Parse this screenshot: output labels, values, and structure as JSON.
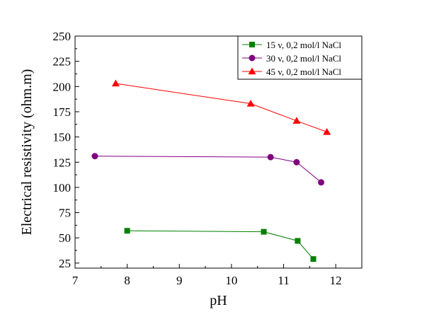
{
  "chart_data": {
    "type": "line",
    "title": "",
    "xlabel": "pH",
    "ylabel": "Electrical resistivity (ohm.m)",
    "xlim": [
      7,
      12.5
    ],
    "ylim": [
      20,
      250
    ],
    "xticks": [
      7,
      8,
      9,
      10,
      11,
      12
    ],
    "yticks": [
      25,
      50,
      75,
      100,
      125,
      150,
      175,
      200,
      225,
      250
    ],
    "x_tick_labels": [
      "7",
      "8",
      "9",
      "10",
      "11",
      "12"
    ],
    "y_tick_labels": [
      "25",
      "50",
      "75",
      "100",
      "125",
      "150",
      "175",
      "200",
      "225",
      "250"
    ],
    "grid": false,
    "legend_position": "top-right",
    "series": [
      {
        "name": "15 v, 0,2 mol/l NaCl",
        "color": "#008000",
        "marker": "square",
        "x": [
          8.0,
          10.62,
          11.27,
          11.57
        ],
        "y": [
          57,
          56,
          47,
          29
        ]
      },
      {
        "name": "30 v, 0,2 mol/l NaCl",
        "color": "#800080",
        "marker": "circle",
        "x": [
          7.38,
          10.75,
          11.25,
          11.72
        ],
        "y": [
          131,
          130,
          125,
          105
        ]
      },
      {
        "name": "45 v, 0,2 mol/l NaCl",
        "color": "#ff0000",
        "marker": "triangle",
        "x": [
          7.78,
          10.37,
          11.25,
          11.83
        ],
        "y": [
          203,
          183,
          166,
          155
        ]
      }
    ]
  }
}
